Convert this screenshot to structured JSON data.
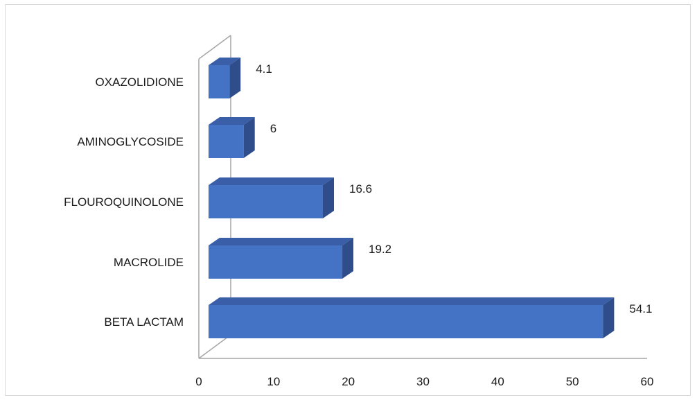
{
  "chart_data": {
    "type": "bar",
    "orientation": "horizontal",
    "style": "3d",
    "categories": [
      "BETA LACTAM",
      "MACROLIDE",
      "FLOUROQUINOLONE",
      "AMINOGLYCOSIDE",
      "OXAZOLIDIONE"
    ],
    "values": [
      54.1,
      19.2,
      16.6,
      6,
      4.1
    ],
    "data_labels": [
      "54.1",
      "19.2",
      "16.6",
      "6",
      "4.1"
    ],
    "x_ticks": [
      "0",
      "10",
      "20",
      "30",
      "40",
      "50",
      "60"
    ],
    "xlim": [
      0,
      60
    ],
    "title": "",
    "xlabel": "",
    "ylabel": "",
    "grid": false,
    "legend": "none",
    "colors": {
      "bar_front": "#4472c4",
      "bar_top": "#3a5fa8",
      "bar_side": "#2e4d8a",
      "axis": "#a6a6a6"
    }
  }
}
